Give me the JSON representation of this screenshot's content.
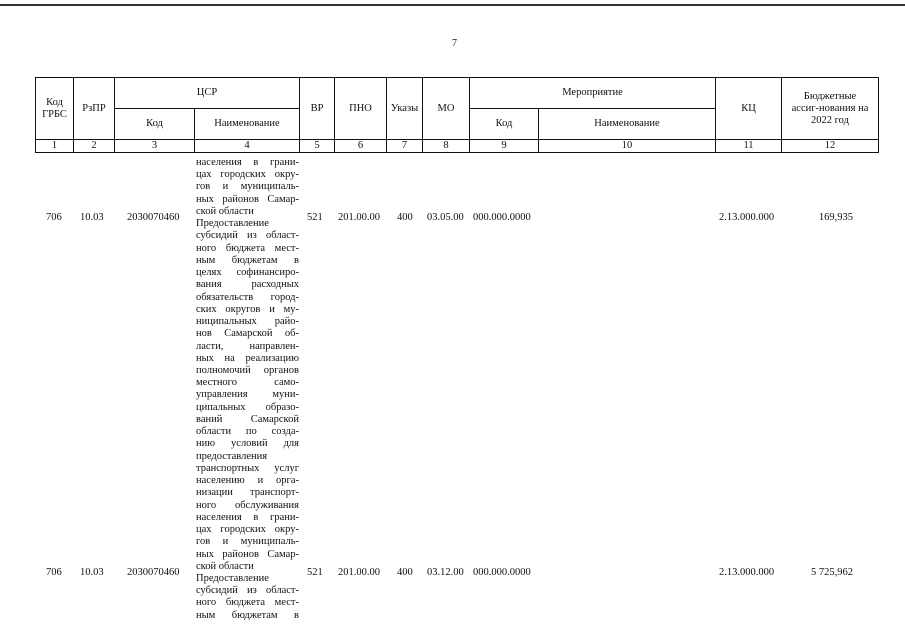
{
  "page_number": "7",
  "header": {
    "kod_grbs": "Код ГРБС",
    "rzpr": "РзПР",
    "csr": "ЦСР",
    "csr_kod": "Код",
    "csr_name": "Наименование",
    "vr": "ВР",
    "pno": "ПНО",
    "ukazy": "Указы",
    "mo": "МО",
    "meropriyatie": "Мероприятие",
    "mer_kod": "Код",
    "mer_name": "Наименование",
    "kc": "КЦ",
    "budget": "Бюджетные ассиг-нования на 2022 год",
    "col_numbers": [
      "1",
      "2",
      "3",
      "4",
      "5",
      "6",
      "7",
      "8",
      "9",
      "10",
      "11",
      "12"
    ]
  },
  "name_lines": [
    "населения в грани-",
    "цах городских окру-",
    "гов и муниципаль-",
    "ных районов Самар-",
    "ской области",
    "Предоставление",
    "субсидий из област-",
    "ного бюджета мест-",
    "ным бюджетам в",
    "целях софинансиро-",
    "вания расходных",
    "обязательств город-",
    "ских округов и му-",
    "ниципальных райо-",
    "нов Самарской об-",
    "ласти, направлен-",
    "ных на реализацию",
    "полномочий органов",
    "местного само-",
    "управления муни-",
    "ципальных образо-",
    "ваний Самарской",
    "области по созда-",
    "нию условий для",
    "предоставления",
    "транспортных услуг",
    "населению и орга-",
    "низации транспорт-",
    "ного обслуживания",
    "населения в грани-",
    "цах городских окру-",
    "гов и муниципаль-",
    "ных районов Самар-",
    "ской области",
    "Предоставление",
    "субсидий из област-",
    "ного бюджета мест-",
    "ным бюджетам в"
  ],
  "rows": [
    {
      "grbs": "706",
      "rzpr": "10.03",
      "csr": "2030070460",
      "vr": "521",
      "pno": "201.00.00",
      "ukaz": "400",
      "mo": "03.05.00",
      "mer_kod": "000.000.0000",
      "mer_name": "",
      "kc": "2.13.000.000",
      "amount": "169,935"
    },
    {
      "grbs": "706",
      "rzpr": "10.03",
      "csr": "2030070460",
      "vr": "521",
      "pno": "201.00.00",
      "ukaz": "400",
      "mo": "03.12.00",
      "mer_kod": "000.000.0000",
      "mer_name": "",
      "kc": "2.13.000.000",
      "amount": "5 725,962"
    }
  ]
}
